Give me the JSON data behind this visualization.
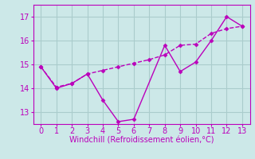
{
  "line1_x": [
    0,
    1,
    2,
    3,
    4,
    5,
    6,
    8,
    9,
    10,
    11,
    12,
    13
  ],
  "line1_y": [
    14.9,
    14.0,
    14.2,
    14.6,
    13.5,
    12.6,
    12.7,
    15.8,
    14.7,
    15.1,
    16.0,
    17.0,
    16.6
  ],
  "line2_x": [
    0,
    1,
    2,
    3,
    4,
    5,
    6,
    7,
    8,
    9,
    10,
    11,
    12,
    13
  ],
  "line2_y": [
    14.9,
    14.05,
    14.2,
    14.6,
    14.75,
    14.9,
    15.05,
    15.2,
    15.4,
    15.8,
    15.85,
    16.3,
    16.5,
    16.6
  ],
  "line_color": "#bb00bb",
  "bg_color": "#cce8e8",
  "grid_color": "#aacccc",
  "xlabel": "Windchill (Refroidissement éolien,°C)",
  "ylim": [
    12.5,
    17.5
  ],
  "xlim": [
    -0.5,
    13.5
  ],
  "yticks": [
    13,
    14,
    15,
    16,
    17
  ],
  "xticks": [
    0,
    1,
    2,
    3,
    4,
    5,
    6,
    7,
    8,
    9,
    10,
    11,
    12,
    13
  ],
  "tick_fontsize": 7,
  "xlabel_fontsize": 7
}
